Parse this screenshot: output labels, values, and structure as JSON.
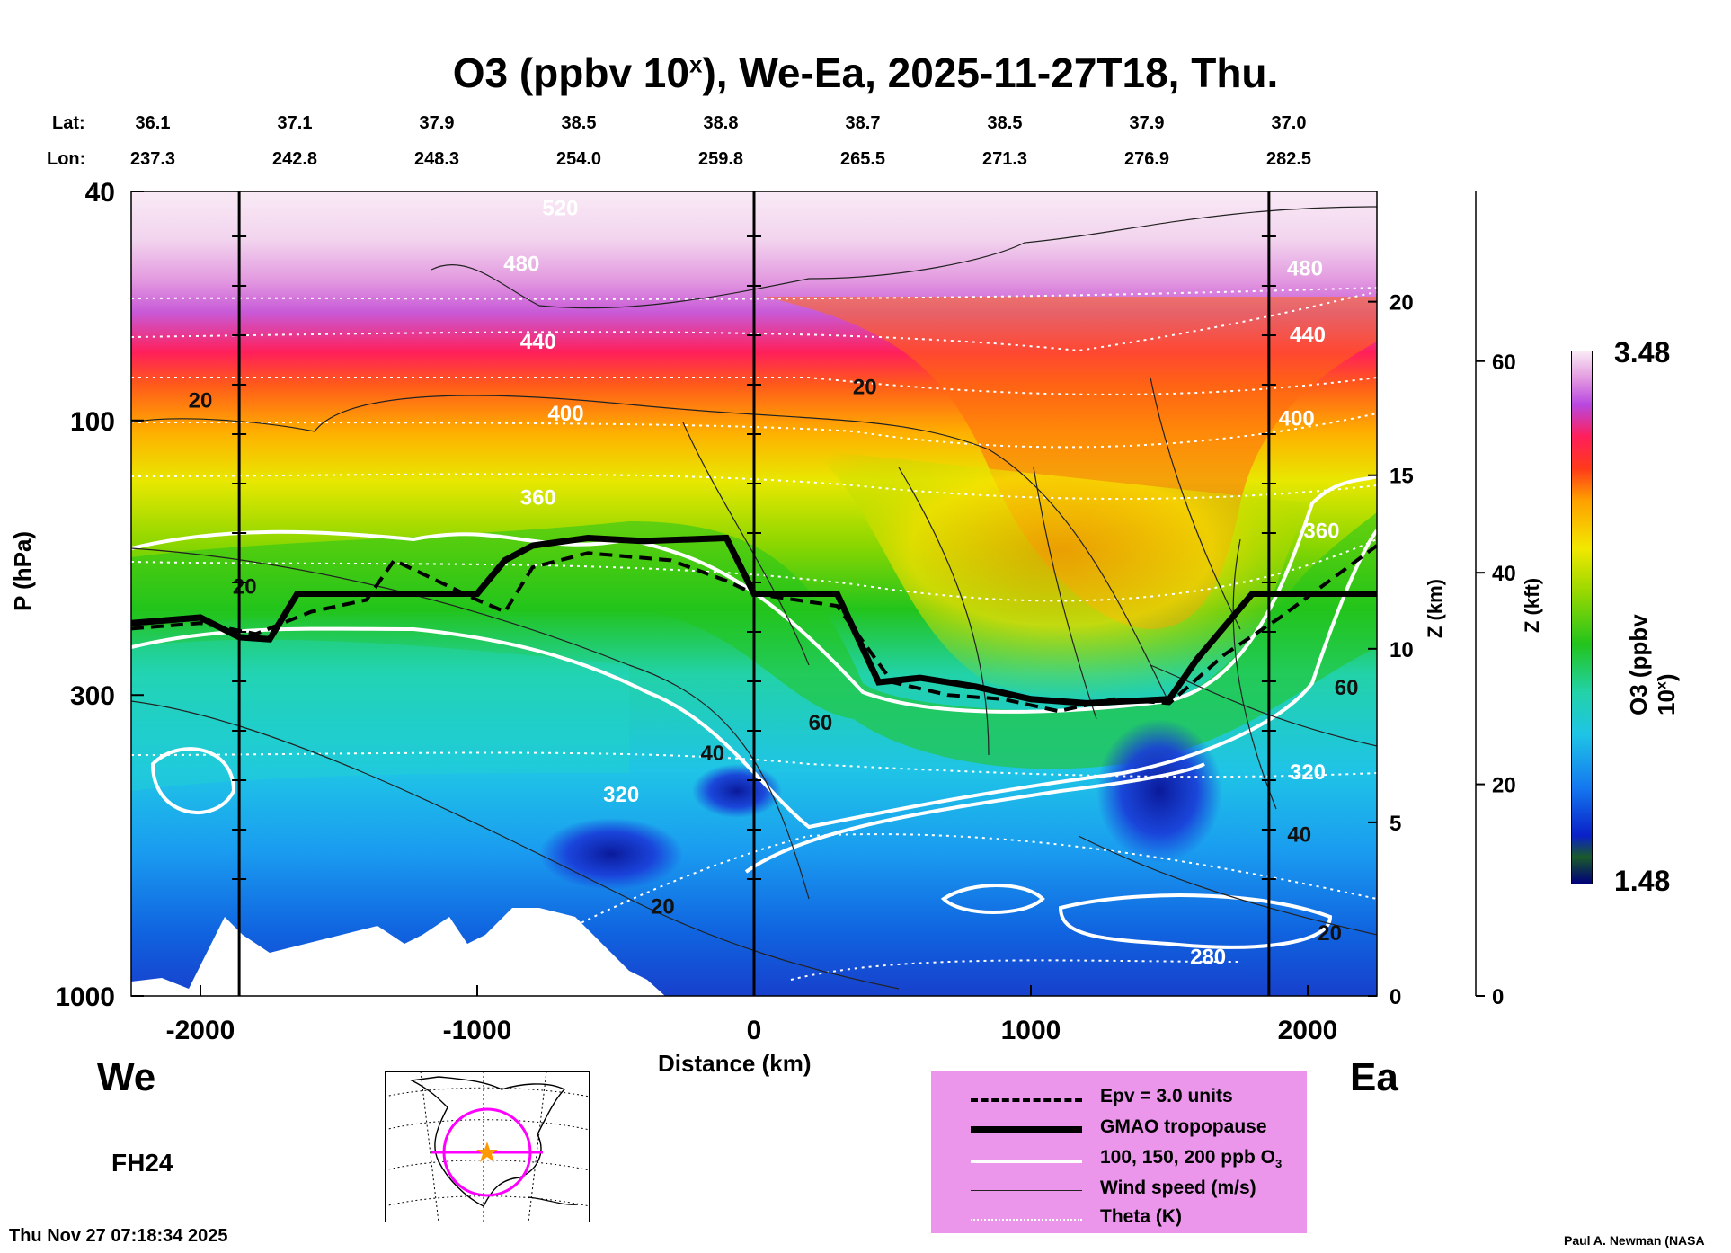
{
  "title": {
    "prefix": "O3 (ppbv 10",
    "sup": "x",
    "suffix": "), We-Ea, 2025-11-27T18, Thu."
  },
  "coords": {
    "lat_label": "Lat:",
    "lon_label": "Lon:",
    "lat": [
      "36.1",
      "37.1",
      "37.9",
      "38.5",
      "38.8",
      "38.7",
      "38.5",
      "37.9",
      "37.0"
    ],
    "lon": [
      "237.3",
      "242.8",
      "248.3",
      "254.0",
      "259.8",
      "265.5",
      "271.3",
      "276.9",
      "282.5"
    ]
  },
  "chart_data": {
    "type": "heatmap",
    "title": "O3 (ppbv 10^x), We-Ea, 2025-11-27T18, Thu.",
    "xlabel": "Distance (km)",
    "ylabel": "P (hPa)",
    "xlim": [
      -2250,
      2250
    ],
    "ylim": [
      1000,
      40
    ],
    "x_ticks": [
      -2000,
      -1000,
      0,
      1000,
      2000
    ],
    "x_tick_labels": [
      "-2000",
      "-1000",
      "0",
      "1000",
      "2000"
    ],
    "y_ticks": [
      40,
      100,
      300,
      1000
    ],
    "y_tick_labels": [
      "40",
      "100",
      "300",
      "1000"
    ],
    "z_km_ticks": [
      0,
      5,
      10,
      15,
      20
    ],
    "z_km_labels": [
      "0",
      "5",
      "10",
      "15",
      "20"
    ],
    "z_km_label": "Z (km)",
    "z_kft_ticks": [
      0,
      20,
      40,
      60
    ],
    "z_kft_labels": [
      "0",
      "20",
      "40",
      "60"
    ],
    "z_kft_label": "Z (kft)",
    "colorbar": {
      "label": "O3 (ppbv 10",
      "sup": "x",
      "label_end": ")",
      "min": 1.48,
      "max": 3.48,
      "min_label": "1.48",
      "max_label": "3.48"
    },
    "vertical_markers_km": [
      -1860,
      0,
      1860
    ],
    "tropopause": {
      "x_km": [
        -2250,
        -2000,
        -1860,
        -1750,
        -1650,
        -1000,
        -900,
        -800,
        -600,
        -400,
        -100,
        0,
        300,
        450,
        600,
        800,
        1000,
        1200,
        1500,
        1600,
        1800,
        2250
      ],
      "p_hpa": [
        225,
        220,
        238,
        240,
        200,
        200,
        175,
        165,
        160,
        162,
        160,
        200,
        200,
        285,
        280,
        290,
        305,
        310,
        305,
        260,
        200,
        200
      ]
    },
    "epv_line": {
      "x_km": [
        -2250,
        -2000,
        -1800,
        -1600,
        -1400,
        -1300,
        -1000,
        -900,
        -800,
        -600,
        -300,
        -100,
        0,
        300,
        500,
        700,
        900,
        1100,
        1300,
        1500,
        1700,
        1900,
        2250
      ],
      "p_hpa": [
        230,
        225,
        235,
        215,
        205,
        175,
        205,
        215,
        180,
        170,
        175,
        190,
        200,
        210,
        285,
        300,
        305,
        320,
        305,
        310,
        255,
        220,
        165
      ]
    },
    "contour_labels": [
      {
        "text": "20",
        "x_km": -2000,
        "p_hpa": 95
      },
      {
        "text": "20",
        "x_km": -1840,
        "p_hpa": 200
      },
      {
        "text": "440",
        "x_km": -780,
        "p_hpa": 75
      },
      {
        "text": "400",
        "x_km": -680,
        "p_hpa": 100
      },
      {
        "text": "360",
        "x_km": -780,
        "p_hpa": 140
      },
      {
        "text": "320",
        "x_km": -480,
        "p_hpa": 460
      },
      {
        "text": "20",
        "x_km": -330,
        "p_hpa": 720
      },
      {
        "text": "40",
        "x_km": -150,
        "p_hpa": 390
      },
      {
        "text": "60",
        "x_km": 240,
        "p_hpa": 345
      },
      {
        "text": "20",
        "x_km": 400,
        "p_hpa": 90
      },
      {
        "text": "480",
        "x_km": 1990,
        "p_hpa": 56
      },
      {
        "text": "440",
        "x_km": 2000,
        "p_hpa": 73
      },
      {
        "text": "400",
        "x_km": 1960,
        "p_hpa": 102
      },
      {
        "text": "360",
        "x_km": 2050,
        "p_hpa": 160
      },
      {
        "text": "60",
        "x_km": 2140,
        "p_hpa": 300
      },
      {
        "text": "320",
        "x_km": 2000,
        "p_hpa": 420
      },
      {
        "text": "40",
        "x_km": 1970,
        "p_hpa": 540
      },
      {
        "text": "20",
        "x_km": 2080,
        "p_hpa": 800
      },
      {
        "text": "280",
        "x_km": 1640,
        "p_hpa": 880
      },
      {
        "text": "520",
        "x_km": -700,
        "p_hpa": 44
      },
      {
        "text": "480",
        "x_km": -840,
        "p_hpa": 55
      }
    ]
  },
  "labels": {
    "west": "We",
    "east": "Ea",
    "fh": "FH24",
    "timestamp": "Thu Nov 27 07:18:34 2025",
    "credit": "Paul A. Newman (NASA"
  },
  "legend": {
    "items": [
      "Epv = 3.0 units",
      "GMAO tropopause",
      "100, 150, 200 ppb O",
      "Wind speed (m/s)",
      "Theta (K)"
    ],
    "sub3": "3"
  },
  "colors": {
    "panel": "#eb96eb",
    "marker": "#ff9900",
    "track": "#ff00ff"
  }
}
